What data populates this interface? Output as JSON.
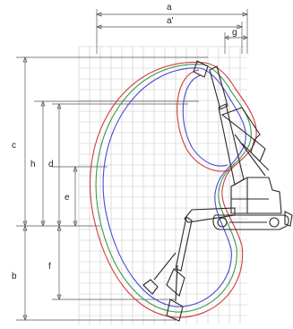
{
  "dimension_labels": {
    "a": "a",
    "a_prime": "a'",
    "g": "g",
    "c": "c",
    "h": "h",
    "d": "d",
    "e": "e",
    "b": "b",
    "f": "f"
  },
  "colors": {
    "grid": "#c8c8c8",
    "dimension_lines": "#555555",
    "machine": "#2a2a2a",
    "envelope_red": "#d23c3c",
    "envelope_green": "#3c9a4a",
    "envelope_blue": "#4a4ad2"
  }
}
